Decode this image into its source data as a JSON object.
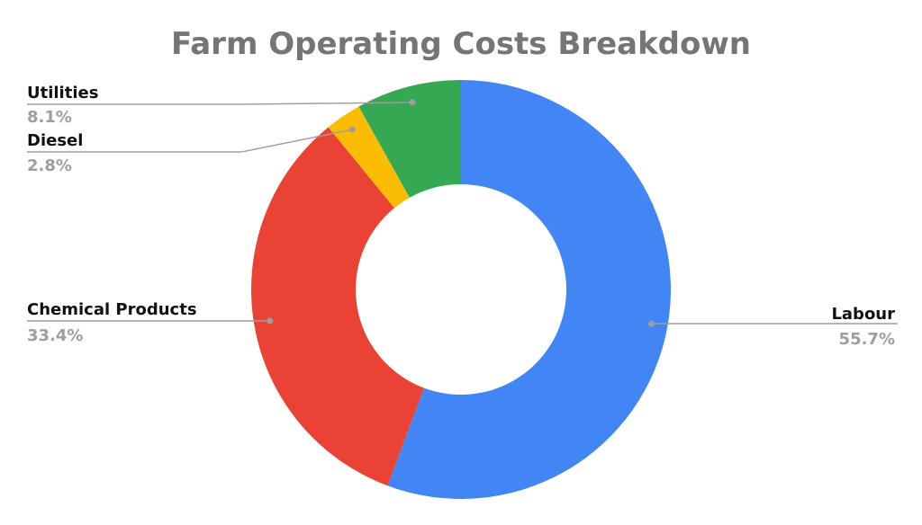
{
  "chart_data": {
    "type": "pie",
    "donut": true,
    "title": "Farm Operating Costs Breakdown",
    "slices": [
      {
        "name": "Labour",
        "value": 55.7,
        "label": "55.7%",
        "color": "#4285f4"
      },
      {
        "name": "Chemical Products",
        "value": 33.4,
        "label": "33.4%",
        "color": "#ea4335"
      },
      {
        "name": "Diesel",
        "value": 2.8,
        "label": "2.8%",
        "color": "#fbbc04"
      },
      {
        "name": "Utilities",
        "value": 8.1,
        "label": "8.1%",
        "color": "#34a853"
      }
    ],
    "start_angle_deg": 0,
    "direction": "clockwise",
    "legend": "none"
  }
}
